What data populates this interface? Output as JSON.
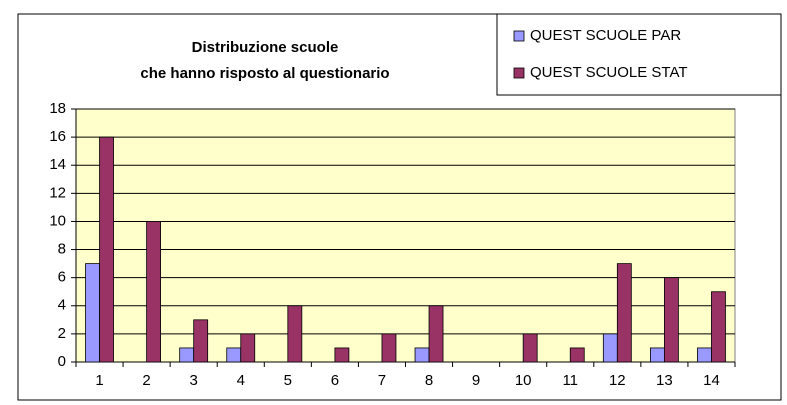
{
  "chart_data": {
    "type": "bar",
    "title": [
      "Distribuzione scuole",
      "che hanno risposto al questionario"
    ],
    "categories": [
      "1",
      "2",
      "3",
      "4",
      "5",
      "6",
      "7",
      "8",
      "9",
      "10",
      "11",
      "12",
      "13",
      "14"
    ],
    "series": [
      {
        "name": "QUEST SCUOLE PAR",
        "color": "#9999ff",
        "values": [
          7,
          0,
          1,
          1,
          0,
          0,
          0,
          1,
          0,
          0,
          0,
          2,
          1,
          1
        ]
      },
      {
        "name": "QUEST SCUOLE STAT",
        "color": "#993366",
        "values": [
          16,
          10,
          3,
          2,
          4,
          1,
          2,
          4,
          0,
          2,
          1,
          7,
          6,
          5
        ]
      }
    ],
    "ylim": [
      0,
      18
    ],
    "yticks": [
      0,
      2,
      4,
      6,
      8,
      10,
      12,
      14,
      16,
      18
    ],
    "grid": true,
    "legend": "top-right"
  }
}
